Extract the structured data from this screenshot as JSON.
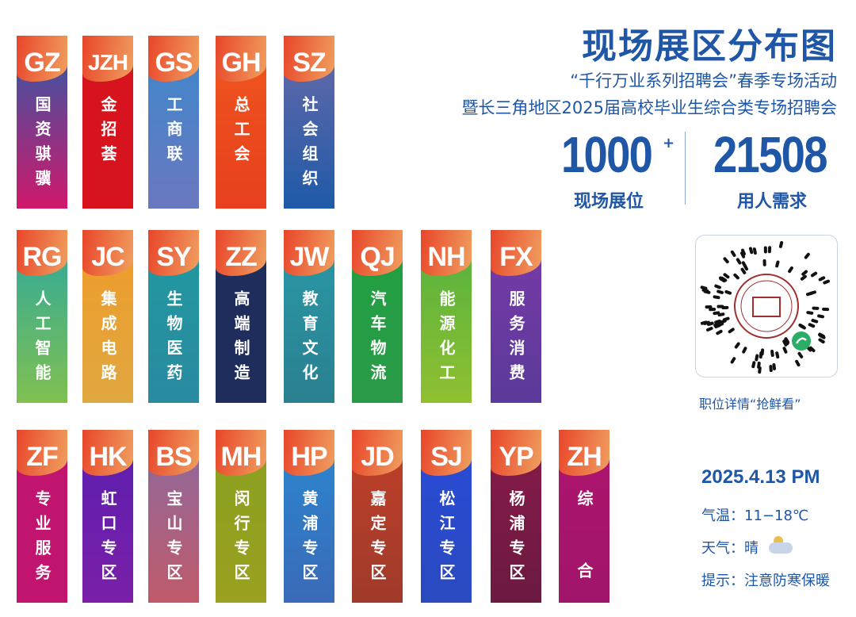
{
  "header": {
    "title": "现场展区分布图",
    "subtitle1": "“千行万业系列招聘会”春季专场活动",
    "subtitle2": "暨长三角地区2025届高校毕业生综合类专场招聘会"
  },
  "stats": {
    "booths": "1000",
    "booths_suffix": "+",
    "booths_label": "现场展位",
    "demand": "21508",
    "demand_label": "用人需求"
  },
  "qr": {
    "caption": "职位详情“抢鲜看”",
    "icon": "wechat-mini-program-qr-icon"
  },
  "info": {
    "datetime": "2025.4.13 PM",
    "temperature": "气温：11−18℃",
    "weather": "天气：晴",
    "weather_icon": "cloud-sun-icon",
    "tip": "提示：注意防寒保暖"
  },
  "rows": [
    [
      {
        "code": "GZ",
        "name": "国资骐骥",
        "color": [
          "#2a5cab",
          "#d0186a"
        ]
      },
      {
        "code": "JZH",
        "name": "金招荟",
        "color": [
          "#d7141e",
          "#d7141e"
        ]
      },
      {
        "code": "GS",
        "name": "工商联",
        "color": [
          "#3a88cc",
          "#6a78c0"
        ]
      },
      {
        "code": "GH",
        "name": "总工会",
        "color": [
          "#f0561e",
          "#e8401e"
        ]
      },
      {
        "code": "SZ",
        "name": "社会组织",
        "color": [
          "#6a6aa8",
          "#1f5aa8"
        ]
      }
    ],
    [
      {
        "code": "RG",
        "name": "人工智能",
        "color": [
          "#2aa8a0",
          "#80c050"
        ]
      },
      {
        "code": "JC",
        "name": "集成电路",
        "color": [
          "#f09a28",
          "#e0a840"
        ]
      },
      {
        "code": "SY",
        "name": "生物医药",
        "color": [
          "#1f9aa0",
          "#2a8aa0"
        ]
      },
      {
        "code": "ZZ",
        "name": "高端制造",
        "color": [
          "#1f2d5c",
          "#1f2d5c"
        ]
      },
      {
        "code": "JW",
        "name": "教育文化",
        "color": [
          "#2a9aa8",
          "#2a8090"
        ]
      },
      {
        "code": "QJ",
        "name": "汽车物流",
        "color": [
          "#20a040",
          "#2a9a48"
        ]
      },
      {
        "code": "NH",
        "name": "能源化工",
        "color": [
          "#50b040",
          "#90c030"
        ]
      },
      {
        "code": "FX",
        "name": "服务消费",
        "color": [
          "#7a3aa8",
          "#5a3a9a"
        ]
      }
    ],
    [
      {
        "code": "ZF",
        "name": "专业服务",
        "color": [
          "#c0146e",
          "#c0146e"
        ]
      },
      {
        "code": "HK",
        "name": "虹口专区",
        "color": [
          "#5a1fb0",
          "#7a1fa8"
        ]
      },
      {
        "code": "BS",
        "name": "宝山专区",
        "color": [
          "#8a6aa0",
          "#c05a6a"
        ]
      },
      {
        "code": "MH",
        "name": "闵行专区",
        "color": [
          "#8aa020",
          "#9aa020"
        ]
      },
      {
        "code": "HP",
        "name": "黄浦专区",
        "color": [
          "#2a88d0",
          "#3a6ab8"
        ]
      },
      {
        "code": "JD",
        "name": "嘉定专区",
        "color": [
          "#c0402a",
          "#a03a2a"
        ]
      },
      {
        "code": "SJ",
        "name": "松江专区",
        "color": [
          "#2a4ad8",
          "#2a4ac0"
        ]
      },
      {
        "code": "YP",
        "name": "杨浦专区",
        "color": [
          "#8a1a4a",
          "#6a1a40"
        ]
      },
      {
        "code": "ZH",
        "name": "综合",
        "color": [
          "#b0156e",
          "#a0156a"
        ]
      }
    ]
  ]
}
